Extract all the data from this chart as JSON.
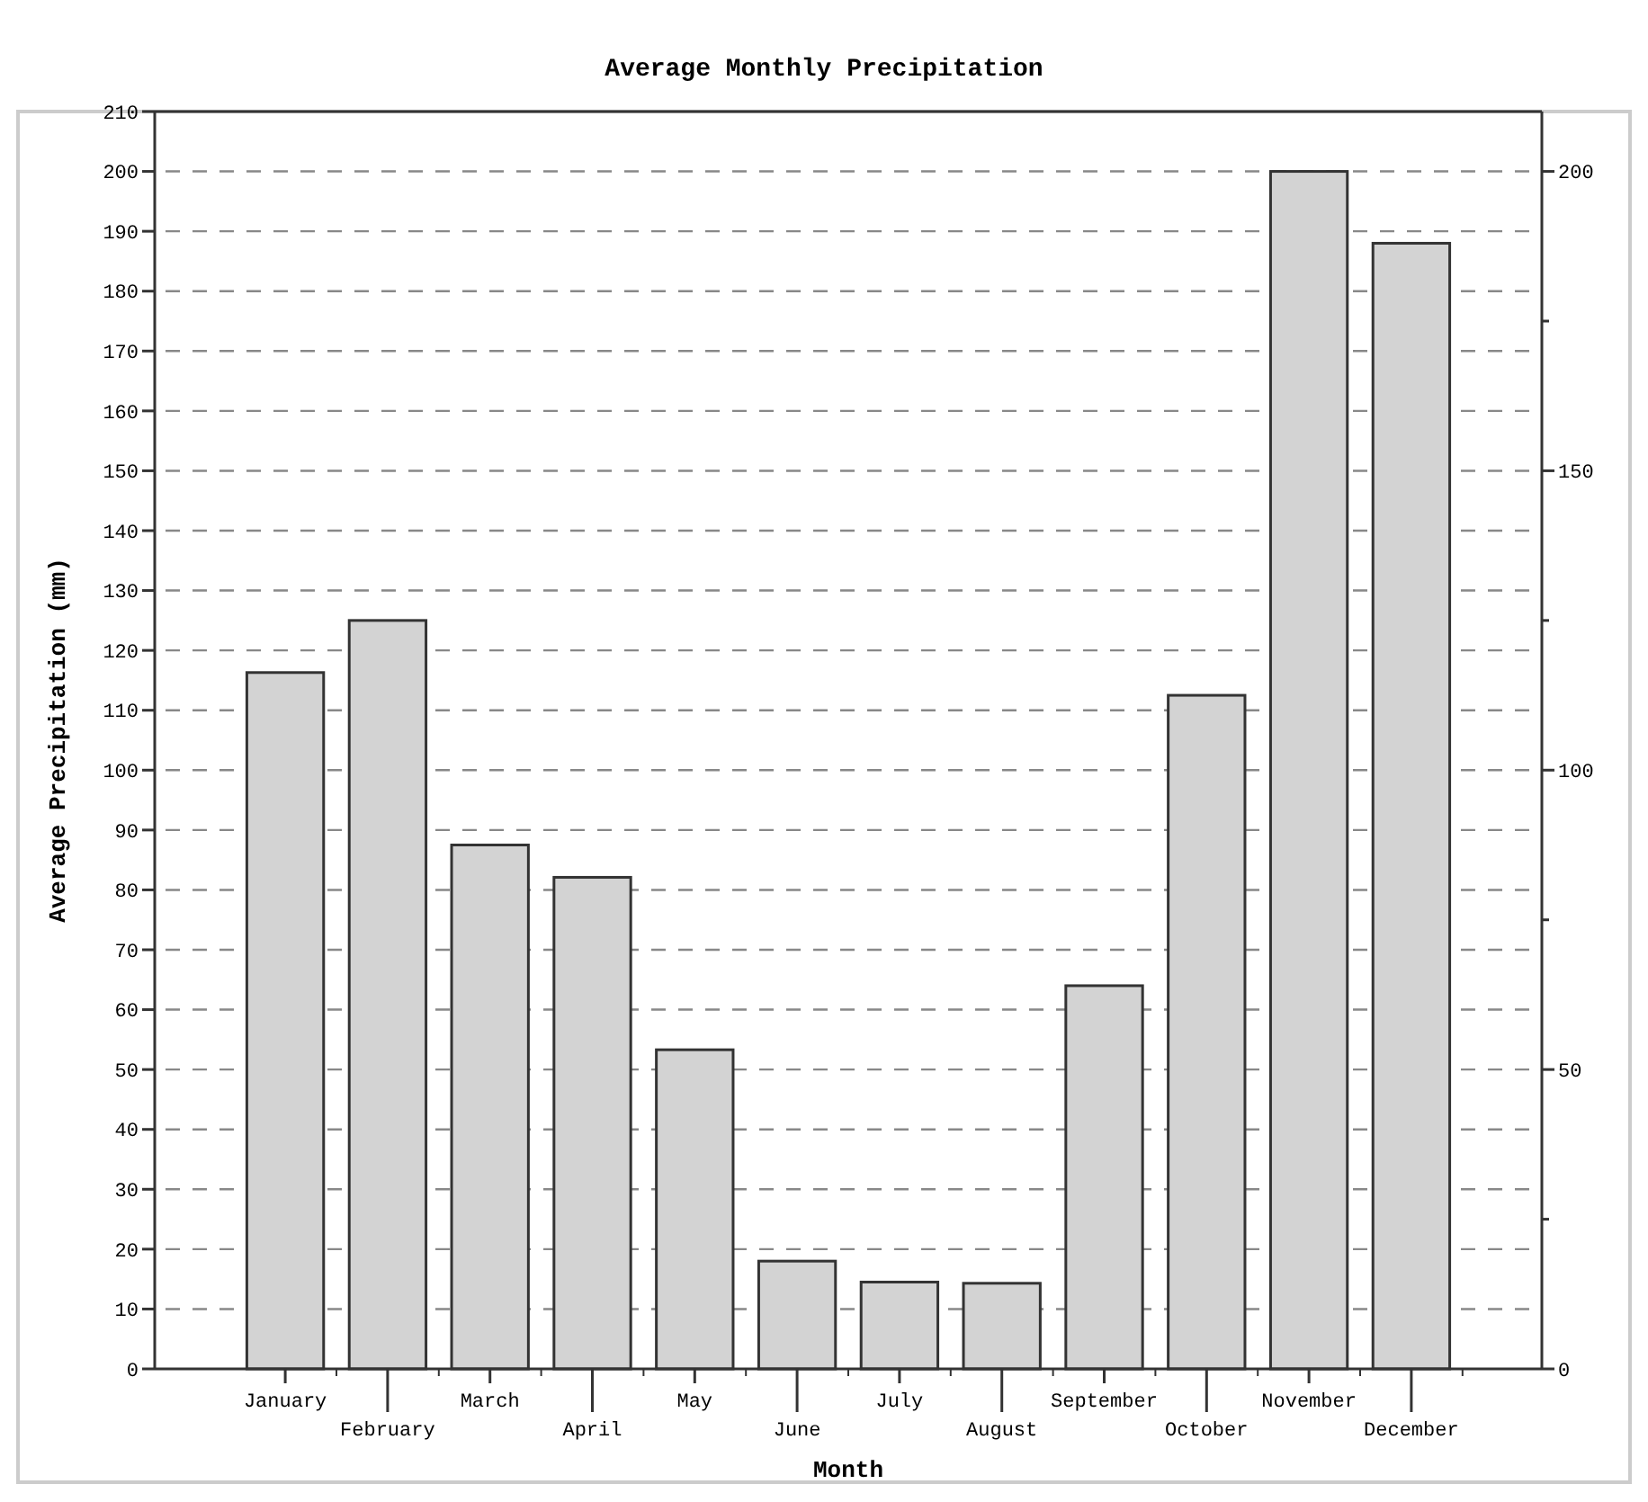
{
  "chart_data": {
    "type": "bar",
    "title": "Average Monthly Precipitation",
    "xlabel": "Month",
    "ylabel": "Average Precipitation (mm)",
    "categories": [
      "January",
      "February",
      "March",
      "April",
      "May",
      "June",
      "July",
      "August",
      "September",
      "October",
      "November",
      "December"
    ],
    "values": [
      116.3,
      125,
      87.5,
      82.1,
      53.3,
      18,
      14.5,
      14.3,
      64,
      112.5,
      200,
      188
    ],
    "color": "#d3d3d3",
    "ylim": [
      0,
      210
    ],
    "yticks": [
      0,
      10,
      20,
      30,
      40,
      50,
      60,
      70,
      80,
      90,
      100,
      110,
      120,
      130,
      140,
      150,
      160,
      170,
      180,
      190,
      200,
      210
    ],
    "y2lim": [
      0,
      210
    ],
    "y2ticks": [
      0,
      {
        "value": 25,
        "label": null
      },
      50,
      {
        "value": 75,
        "label": null
      },
      100,
      {
        "value": 125,
        "label": null
      },
      150,
      {
        "value": 175,
        "label": null
      },
      200
    ],
    "grid": "y",
    "line_style": "dashed"
  }
}
